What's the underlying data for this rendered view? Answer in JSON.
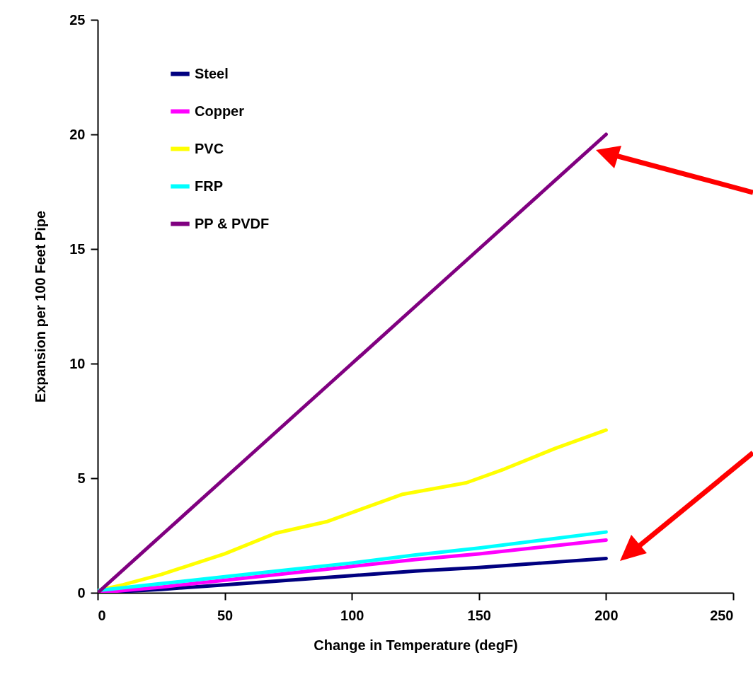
{
  "chart_data": {
    "type": "line",
    "xlabel": "Change in Temperature (degF)",
    "ylabel": "Expansion per 100 Feet Pipe",
    "xlim": [
      0,
      250
    ],
    "xticks": [
      0,
      50,
      100,
      150,
      200,
      250
    ],
    "ylim": [
      0,
      25
    ],
    "yticks": [
      0,
      5,
      10,
      15,
      20,
      25
    ],
    "grid": false,
    "legend": "top left",
    "marker": "none",
    "line_style": "solid",
    "x": [
      0,
      25,
      50,
      75,
      100,
      125,
      150,
      175,
      200
    ],
    "series": [
      {
        "name": "Steel",
        "color": "#000080",
        "values": [
          0,
          0.15,
          0.35,
          0.55,
          0.75,
          0.95,
          1.1,
          1.3,
          1.5
        ]
      },
      {
        "name": "Copper",
        "color": "#ff00ff",
        "values": [
          0,
          0.25,
          0.55,
          0.85,
          1.15,
          1.45,
          1.7,
          2.0,
          2.3
        ]
      },
      {
        "name": "PVC",
        "color": "#ffff00",
        "x": [
          0,
          10,
          25,
          50,
          70,
          90,
          100,
          120,
          130,
          145,
          160,
          180,
          200
        ],
        "values": [
          0.1,
          0.35,
          0.8,
          1.7,
          2.6,
          3.1,
          3.5,
          4.3,
          4.5,
          4.8,
          5.4,
          6.3,
          7.1
        ]
      },
      {
        "name": "FRP",
        "color": "#00ffff",
        "values": [
          0.1,
          0.4,
          0.7,
          1.0,
          1.3,
          1.65,
          1.95,
          2.3,
          2.65
        ]
      },
      {
        "name": "PP & PVDF",
        "color": "#800080",
        "values": [
          0,
          2.5,
          5,
          7.5,
          10,
          12.5,
          15,
          17.5,
          20
        ]
      }
    ]
  }
}
